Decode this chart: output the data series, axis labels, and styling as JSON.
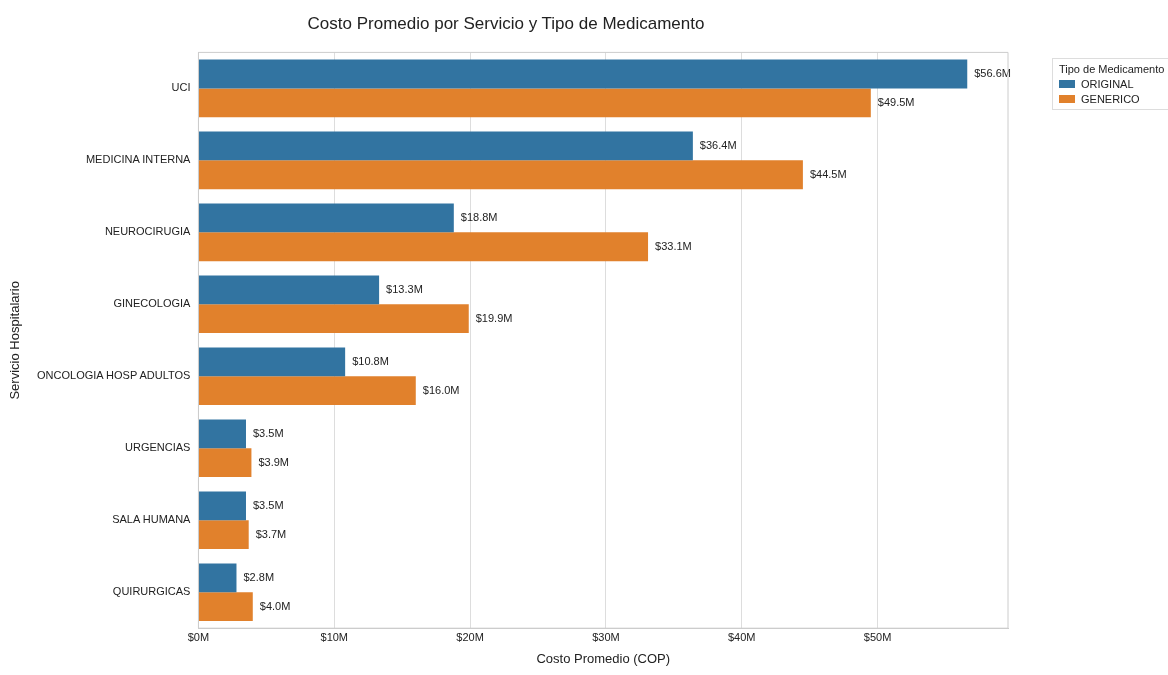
{
  "chart_data": {
    "type": "bar",
    "orientation": "horizontal",
    "title": "Costo Promedio por Servicio y Tipo de Medicamento",
    "xlabel": "Costo Promedio (COP)",
    "ylabel": "Servicio Hospitalario",
    "legend_title": "Tipo de Medicamento",
    "legend": "top right",
    "grid": "x",
    "categories": [
      "UCI",
      "MEDICINA INTERNA",
      "NEUROCIRUGIA",
      "GINECOLOGIA",
      "ONCOLOGIA HOSP ADULTOS",
      "URGENCIAS",
      "SALA HUMANA",
      "QUIRURGICAS"
    ],
    "series": [
      {
        "name": "ORIGINAL",
        "color": "#3274a1",
        "values": [
          56.6,
          36.4,
          18.8,
          13.3,
          10.8,
          3.5,
          3.5,
          2.8
        ],
        "value_labels": [
          "$56.6M",
          "$36.4M",
          "$18.8M",
          "$13.3M",
          "$10.8M",
          "$3.5M",
          "$3.5M",
          "$2.8M"
        ]
      },
      {
        "name": "GENERICO",
        "color": "#e1812c",
        "values": [
          49.5,
          44.5,
          33.1,
          19.9,
          16.0,
          3.9,
          3.7,
          4.0
        ],
        "value_labels": [
          "$49.5M",
          "$44.5M",
          "$33.1M",
          "$19.9M",
          "$16.0M",
          "$3.9M",
          "$3.7M",
          "$4.0M"
        ]
      }
    ],
    "xlim": [
      0,
      59.6
    ],
    "xticks": [
      {
        "value": 0,
        "label": "$0M"
      },
      {
        "value": 10,
        "label": "$10M"
      },
      {
        "value": 20,
        "label": "$20M"
      },
      {
        "value": 30,
        "label": "$30M"
      },
      {
        "value": 40,
        "label": "$40M"
      },
      {
        "value": 50,
        "label": "$50M"
      }
    ]
  }
}
